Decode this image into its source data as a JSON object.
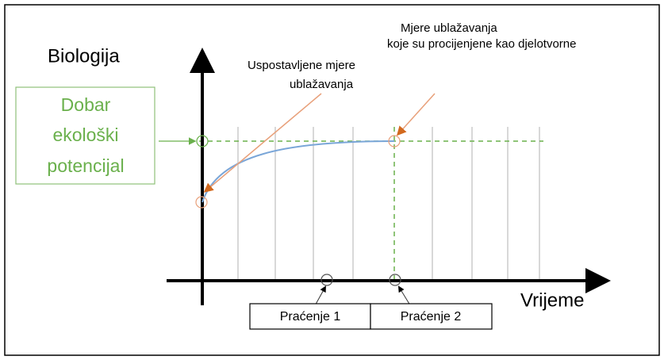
{
  "y_axis_label": "Biologija",
  "x_axis_label": "Vrijeme",
  "target_box": {
    "lines": [
      "Dobar",
      "ekološki",
      "potencijal"
    ]
  },
  "annotation_1": {
    "lines": [
      "Uspostavljene mjere",
      "ublažavanja"
    ]
  },
  "annotation_2": {
    "lines": [
      "Mjere ublažavanja",
      "koje su procijenjene kao djelotvorne"
    ]
  },
  "monitoring": [
    "Praćenje 1",
    "Praćenje 2"
  ]
}
